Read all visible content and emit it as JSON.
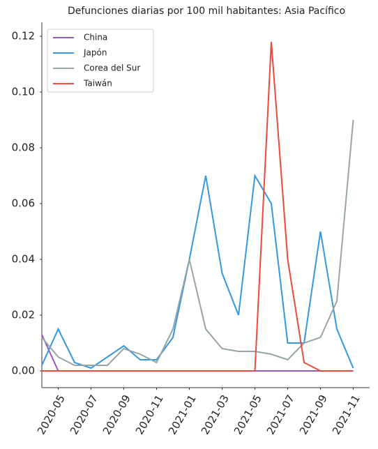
{
  "chart_data": {
    "type": "line",
    "title": "Defunciones diarias por 100 mil habitantes: Asia Pacífico",
    "x": [
      "2020-04",
      "2020-05",
      "2020-06",
      "2020-07",
      "2020-08",
      "2020-09",
      "2020-10",
      "2020-11",
      "2020-12",
      "2021-01",
      "2021-02",
      "2021-03",
      "2021-04",
      "2021-05",
      "2021-06",
      "2021-07",
      "2021-08",
      "2021-09",
      "2021-10",
      "2021-11"
    ],
    "series": [
      {
        "name": "China",
        "color": "#9b59b6",
        "values": [
          0.013,
          0,
          0,
          0,
          0,
          0,
          0,
          0,
          0,
          0,
          0,
          0,
          0,
          0,
          0,
          0,
          0,
          0,
          0,
          0
        ]
      },
      {
        "name": "Japón",
        "color": "#3498db",
        "values": [
          0.002,
          0.015,
          0.003,
          0.001,
          0.005,
          0.009,
          0.004,
          0.004,
          0.012,
          0.04,
          0.07,
          0.035,
          0.02,
          0.07,
          0.06,
          0.01,
          0.01,
          0.05,
          0.015,
          0.001
        ]
      },
      {
        "name": "Corea del Sur",
        "color": "#95a5a6",
        "values": [
          0.012,
          0.005,
          0.002,
          0.002,
          0.002,
          0.008,
          0.006,
          0.003,
          0.015,
          0.04,
          0.015,
          0.008,
          0.007,
          0.007,
          0.006,
          0.004,
          0.01,
          0.012,
          0.025,
          0.09
        ]
      },
      {
        "name": "Taiwán",
        "color": "#e74c3c",
        "values": [
          0,
          0,
          0,
          0,
          0,
          0,
          0,
          0,
          0,
          0,
          0,
          0,
          0,
          0,
          0.118,
          0.04,
          0.003,
          0,
          0,
          0
        ]
      }
    ],
    "xlim": [
      "2020-04",
      "2021-12"
    ],
    "xticks": [
      "2020-05",
      "2020-07",
      "2020-09",
      "2020-11",
      "2021-01",
      "2021-03",
      "2021-05",
      "2021-07",
      "2021-09",
      "2021-11"
    ],
    "ylim": [
      -0.006,
      0.125
    ],
    "yticks": [
      {
        "value": 0,
        "label": "0.00"
      },
      0.02,
      0.04,
      0.06,
      0.08,
      {
        "value": 0.1,
        "label": "0.10"
      },
      0.12
    ],
    "legend": "upper-left"
  }
}
